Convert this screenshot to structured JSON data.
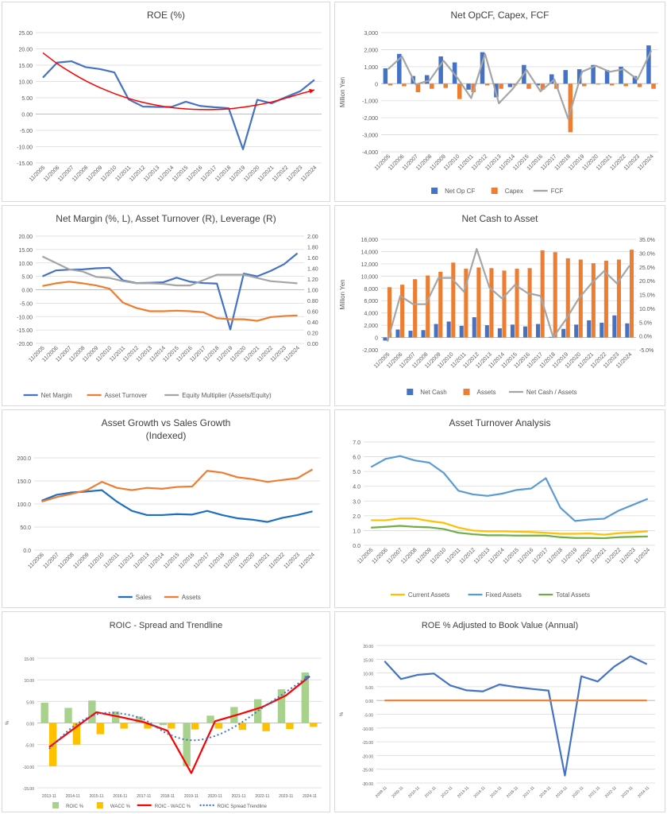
{
  "chart_data": [
    {
      "type": "line",
      "title": "ROE (%)",
      "categories": [
        "11/2005",
        "11/2006",
        "11/2007",
        "11/2008",
        "11/2009",
        "11/2010",
        "11/2011",
        "11/2012",
        "11/2013",
        "11/2014",
        "11/2015",
        "11/2016",
        "11/2017",
        "11/2018",
        "11/2019",
        "11/2020",
        "11/2021",
        "11/2022",
        "11/2023",
        "11/2024"
      ],
      "ylim": [
        -15,
        25
      ],
      "y_ticks": [
        "25.00",
        "20.00",
        "15.00",
        "10.00",
        "5.00",
        "0.00",
        "-5.00",
        "-10.00",
        "-15.00"
      ],
      "series": [
        {
          "values": [
            11.2,
            15.8,
            16.2,
            14.4,
            13.8,
            12.8,
            4.5,
            2.3,
            2.2,
            2.2,
            3.8,
            2.5,
            2.1,
            1.8,
            -10.8,
            4.4,
            3.3,
            5.2,
            7.0,
            10.5
          ],
          "color": "#4472c4"
        },
        {
          "values": [
            18.8,
            15.5,
            12.7,
            10.2,
            8.1,
            6.3,
            4.8,
            3.6,
            2.7,
            2.0,
            1.6,
            1.4,
            1.4,
            1.6,
            2.1,
            2.8,
            3.7,
            4.9,
            6.2,
            7.4
          ],
          "color": "#ff0000",
          "style": "trendline-arrow"
        }
      ],
      "grid": true,
      "legend": "none"
    },
    {
      "type": "bar",
      "title": "Net OpCF, Capex, FCF",
      "ylabel": "Million Yen",
      "categories": [
        "11/2005",
        "11/2006",
        "11/2007",
        "11/2008",
        "11/2009",
        "11/2010",
        "11/2011",
        "11/2012",
        "11/2013",
        "11/2014",
        "11/2015",
        "11/2016",
        "11/2017",
        "11/2018",
        "11/2019",
        "11/2020",
        "11/2021",
        "11/2022",
        "11/2023",
        "11/2024"
      ],
      "ylim": [
        -4000,
        3000
      ],
      "y_ticks": [
        "3,000",
        "2,000",
        "1,000",
        "0",
        "-1,000",
        "-2,000",
        "-3,000",
        "-4,000"
      ],
      "series": [
        {
          "name": "Net Op CF",
          "values": [
            900,
            1750,
            450,
            500,
            1600,
            1250,
            -350,
            1850,
            -800,
            -200,
            1100,
            -100,
            550,
            800,
            850,
            1100,
            800,
            1000,
            450,
            2250
          ],
          "color": "#4472c4"
        },
        {
          "name": "Capex",
          "values": [
            -100,
            -150,
            -500,
            -300,
            -250,
            -900,
            -500,
            -100,
            -300,
            -100,
            -300,
            -350,
            -300,
            -2850,
            -150,
            -50,
            -100,
            -150,
            -200,
            -300
          ],
          "color": "#ed7d31"
        },
        {
          "name": "FCF",
          "values": [
            850,
            1600,
            -50,
            200,
            1350,
            350,
            -850,
            1750,
            -1150,
            -300,
            800,
            -450,
            250,
            -2050,
            700,
            1050,
            700,
            850,
            250,
            1950
          ],
          "color": "#a5a5a5",
          "style": "line"
        }
      ],
      "grid": true,
      "legend": "bottom"
    },
    {
      "type": "line",
      "title": "Net Margin (%, L), Asset Turnover (R), Leverage (R)",
      "categories": [
        "11/2005",
        "11/2006",
        "11/2007",
        "11/2008",
        "11/2009",
        "11/2010",
        "11/2011",
        "11/2012",
        "11/2013",
        "11/2014",
        "11/2015",
        "11/2016",
        "11/2017",
        "11/2018",
        "11/2019",
        "11/2020",
        "11/2021",
        "11/2022",
        "11/2023",
        "11/2024"
      ],
      "ylim": [
        -20,
        20
      ],
      "y2lim": [
        0,
        2
      ],
      "y_ticks": [
        "20.00",
        "15.00",
        "10.00",
        "5.00",
        "0.00",
        "-5.00",
        "-10.00",
        "-15.00",
        "-20.00"
      ],
      "y2_ticks": [
        "2.00",
        "1.80",
        "1.60",
        "1.40",
        "1.20",
        "1.00",
        "0.80",
        "0.60",
        "0.40",
        "0.20",
        "0.00"
      ],
      "series": [
        {
          "name": "Net Margin",
          "values": [
            5.0,
            7.2,
            7.5,
            7.6,
            8.0,
            8.2,
            3.5,
            2.5,
            2.6,
            2.8,
            4.5,
            3.0,
            2.5,
            2.3,
            -14.8,
            6.0,
            5.0,
            7.0,
            9.5,
            13.6
          ],
          "color": "#4472c4",
          "axis": "left"
        },
        {
          "name": "Asset Turnover",
          "values": [
            1.07,
            1.12,
            1.15,
            1.12,
            1.08,
            1.02,
            0.76,
            0.66,
            0.6,
            0.6,
            0.61,
            0.6,
            0.58,
            0.47,
            0.45,
            0.45,
            0.42,
            0.49,
            0.51,
            0.52
          ],
          "color": "#ed7d31",
          "axis": "right"
        },
        {
          "name": "Equity Multiplier (Assets/Equity)",
          "values": [
            1.62,
            1.5,
            1.38,
            1.34,
            1.24,
            1.22,
            1.16,
            1.12,
            1.12,
            1.11,
            1.08,
            1.08,
            1.18,
            1.28,
            1.28,
            1.28,
            1.22,
            1.16,
            1.14,
            1.12
          ],
          "color": "#a5a5a5",
          "axis": "right"
        }
      ],
      "grid": true,
      "legend": "bottom"
    },
    {
      "type": "bar",
      "title": "Net Cash to Asset",
      "ylabel": "Million Yen",
      "categories": [
        "11/2005",
        "11/2006",
        "11/2007",
        "11/2008",
        "11/2009",
        "11/2010",
        "11/2011",
        "11/2012",
        "11/2013",
        "11/2014",
        "11/2015",
        "11/2016",
        "11/2017",
        "11/2018",
        "11/2019",
        "11/2020",
        "11/2021",
        "11/2022",
        "11/2023",
        "11/2024"
      ],
      "ylim": [
        -2000,
        16000
      ],
      "y2lim": [
        -5,
        35
      ],
      "y_ticks": [
        "16,000",
        "14,000",
        "12,000",
        "10,000",
        "8,000",
        "6,000",
        "4,000",
        "2,000",
        "0",
        "-2,000"
      ],
      "y2_ticks": [
        "35.0%",
        "30.0%",
        "25.0%",
        "20.0%",
        "15.0%",
        "10.0%",
        "5.0%",
        "0.0%",
        "-5.0%"
      ],
      "series": [
        {
          "name": "Net Cash",
          "values": [
            -500,
            1300,
            1100,
            1200,
            2200,
            2600,
            1900,
            3300,
            2000,
            1500,
            2100,
            1800,
            2200,
            100,
            1400,
            2100,
            2800,
            2400,
            3600,
            2300
          ],
          "color": "#4472c4"
        },
        {
          "name": "Assets",
          "values": [
            8200,
            8600,
            9500,
            10100,
            10700,
            12200,
            11200,
            11400,
            11300,
            10900,
            11200,
            11300,
            14200,
            13900,
            12900,
            12700,
            12100,
            12500,
            12700,
            14300
          ],
          "color": "#ed7d31"
        },
        {
          "name": "Net Cash / Assets",
          "values": [
            -2.0,
            14.5,
            11.5,
            11.5,
            21.0,
            21.0,
            16.0,
            31.5,
            17.5,
            13.5,
            18.5,
            15.5,
            14.5,
            -0.5,
            6.0,
            13.5,
            19.0,
            23.5,
            19.0,
            25.5
          ],
          "color": "#a5a5a5",
          "style": "line",
          "axis": "right"
        }
      ],
      "grid": true,
      "legend": "bottom"
    },
    {
      "type": "line",
      "title": "Asset Growth vs Sales Growth (Indexed)",
      "title_lines": [
        "Asset Growth vs Sales Growth",
        "(Indexed)"
      ],
      "categories": [
        "11/2006",
        "11/2007",
        "11/2008",
        "11/2009",
        "11/2010",
        "11/2011",
        "11/2012",
        "11/2013",
        "11/2014",
        "11/2015",
        "11/2016",
        "11/2017",
        "11/2018",
        "11/2019",
        "11/2020",
        "11/2021",
        "11/2022",
        "11/2023",
        "11/2024"
      ],
      "ylim": [
        0,
        200
      ],
      "y_ticks": [
        "200.0",
        "150.0",
        "100.0",
        "50.0",
        "0.0"
      ],
      "series": [
        {
          "name": "Sales",
          "values": [
            107,
            120,
            125,
            127,
            130,
            105,
            85,
            76,
            76,
            78,
            77,
            85,
            76,
            69,
            66,
            61,
            70,
            76,
            84
          ],
          "color": "#1f6fbf"
        },
        {
          "name": "Assets",
          "values": [
            105,
            115,
            122,
            130,
            148,
            135,
            130,
            135,
            133,
            137,
            138,
            172,
            168,
            158,
            154,
            148,
            152,
            156,
            175
          ],
          "color": "#ed7d31"
        }
      ],
      "grid": true,
      "legend": "bottom"
    },
    {
      "type": "line",
      "title": "Asset Turnover Analysis",
      "categories": [
        "11/2005",
        "11/2006",
        "11/2007",
        "11/2008",
        "11/2009",
        "11/2010",
        "11/2011",
        "11/2012",
        "11/2013",
        "11/2014",
        "11/2015",
        "11/2016",
        "11/2017",
        "11/2018",
        "11/2019",
        "11/2020",
        "11/2021",
        "11/2022",
        "11/2023",
        "11/2024"
      ],
      "ylim": [
        0,
        7
      ],
      "y_ticks": [
        "7.0",
        "6.0",
        "5.0",
        "4.0",
        "3.0",
        "2.0",
        "1.0",
        "0.0"
      ],
      "series": [
        {
          "name": "Current Assets",
          "values": [
            1.7,
            1.7,
            1.82,
            1.82,
            1.65,
            1.52,
            1.2,
            1.0,
            0.95,
            0.95,
            0.92,
            0.9,
            0.85,
            0.78,
            0.78,
            0.8,
            0.72,
            0.82,
            0.88,
            0.95
          ],
          "color": "#ffc000"
        },
        {
          "name": "Fixed Assets",
          "values": [
            5.3,
            5.85,
            6.05,
            5.75,
            5.6,
            4.9,
            3.7,
            3.45,
            3.35,
            3.5,
            3.75,
            3.85,
            4.55,
            2.55,
            1.65,
            1.75,
            1.8,
            2.35,
            2.75,
            3.15
          ],
          "color": "#5b9bd5"
        },
        {
          "name": "Total Assets",
          "values": [
            1.2,
            1.25,
            1.32,
            1.25,
            1.22,
            1.1,
            0.85,
            0.75,
            0.68,
            0.68,
            0.66,
            0.66,
            0.66,
            0.55,
            0.5,
            0.5,
            0.48,
            0.55,
            0.58,
            0.6
          ],
          "color": "#70ad47"
        }
      ],
      "grid": true,
      "legend": "bottom"
    },
    {
      "type": "bar",
      "title": "ROIC - Spread and Trendline",
      "ylabel": "%",
      "categories": [
        "2013-11",
        "2014-11",
        "2015-11",
        "2016-11",
        "2017-11",
        "2018-11",
        "2019-11",
        "2020-11",
        "2021-11",
        "2022-11",
        "2023-11",
        "2024-11"
      ],
      "ylim": [
        -15,
        15
      ],
      "y_ticks": [
        "15.00",
        "10.00",
        "5.00",
        "0.00",
        "-5.00",
        "-10.00",
        "-15.00"
      ],
      "series": [
        {
          "name": "ROIC %",
          "values": [
            4.7,
            3.5,
            5.2,
            2.7,
            1.5,
            -0.5,
            -10.0,
            1.7,
            3.7,
            5.5,
            7.8,
            11.7
          ],
          "color": "#a9d18e"
        },
        {
          "name": "WACC %",
          "values": [
            -10.0,
            -5.0,
            -2.6,
            -1.3,
            -1.3,
            -1.3,
            -1.5,
            -1.3,
            -1.6,
            -1.9,
            -1.4,
            -0.9
          ],
          "color": "#ffc000"
        },
        {
          "name": "ROIC - WACC %",
          "values": [
            -5.6,
            -1.5,
            2.5,
            1.4,
            0.2,
            -1.8,
            -11.6,
            0.4,
            2.0,
            3.7,
            6.4,
            10.8
          ],
          "color": "#ff0000",
          "style": "line"
        },
        {
          "name": "ROIC Spread Trendline",
          "values": [
            -6.0,
            -0.9,
            2.0,
            2.2,
            0.8,
            -2.5,
            -4.0,
            -3.0,
            -0.3,
            3.5,
            7.2,
            11.0
          ],
          "color": "#4472c4",
          "style": "dotted-arrow"
        }
      ],
      "grid": true,
      "legend": "bottom"
    },
    {
      "type": "line",
      "title": "ROE % Adjusted to Book Value (Annual)",
      "ylabel": "%",
      "categories": [
        "2008-11",
        "2009-11",
        "2010-11",
        "2011-11",
        "2012-11",
        "2013-11",
        "2014-11",
        "2015-11",
        "2016-11",
        "2017-11",
        "2018-11",
        "2019-11",
        "2020-11",
        "2021-11",
        "2022-11",
        "2023-11",
        "2024-11"
      ],
      "ylim": [
        -30,
        20
      ],
      "y_ticks": [
        "20.00",
        "15.00",
        "10.00",
        "5.00",
        "0.00",
        "-5.00",
        "-10.00",
        "-15.00",
        "-20.00",
        "-25.00",
        "-30.00"
      ],
      "series": [
        {
          "values": [
            14.3,
            7.8,
            9.3,
            9.8,
            5.5,
            3.7,
            3.3,
            5.8,
            4.9,
            4.2,
            3.6,
            -27.3,
            8.8,
            6.9,
            12.3,
            16.1,
            13.2
          ],
          "color": "#4472c4"
        },
        {
          "values": [
            0,
            0,
            0,
            0,
            0,
            0,
            0,
            0,
            0,
            0,
            0,
            0,
            0,
            0,
            0,
            0,
            0
          ],
          "color": "#ed7d31"
        }
      ],
      "grid": true,
      "legend": "none"
    }
  ]
}
